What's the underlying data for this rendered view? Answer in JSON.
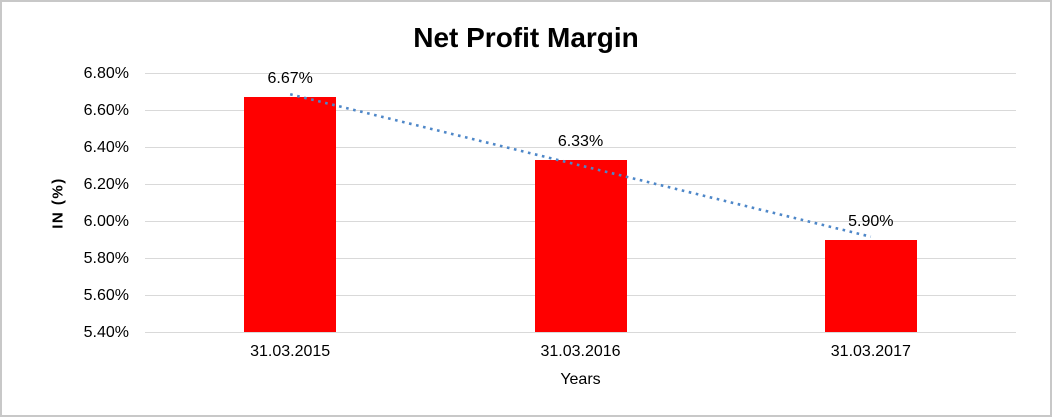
{
  "chart_data": {
    "type": "bar",
    "title": "Net Profit Margin",
    "xlabel": "Years",
    "ylabel": "IN (%)",
    "categories": [
      "31.03.2015",
      "31.03.2016",
      "31.03.2017"
    ],
    "values": [
      6.67,
      6.33,
      5.9
    ],
    "data_labels": [
      "6.67%",
      "6.33%",
      "5.90%"
    ],
    "ylim": [
      5.4,
      6.8
    ],
    "ytick_step": 0.2,
    "yticks": [
      "6.80%",
      "6.60%",
      "6.40%",
      "6.20%",
      "6.00%",
      "5.80%",
      "5.60%",
      "5.40%"
    ],
    "grid": true,
    "legend_position": "none",
    "colors": {
      "bar": "#ff0000",
      "trendline": "#4e87c8",
      "gridline": "#d9d9d9",
      "text": "#000000",
      "border": "#c8c8c8"
    },
    "trendline": {
      "type": "linear",
      "style": "dotted",
      "start_value": 6.685,
      "end_value": 5.915
    }
  }
}
